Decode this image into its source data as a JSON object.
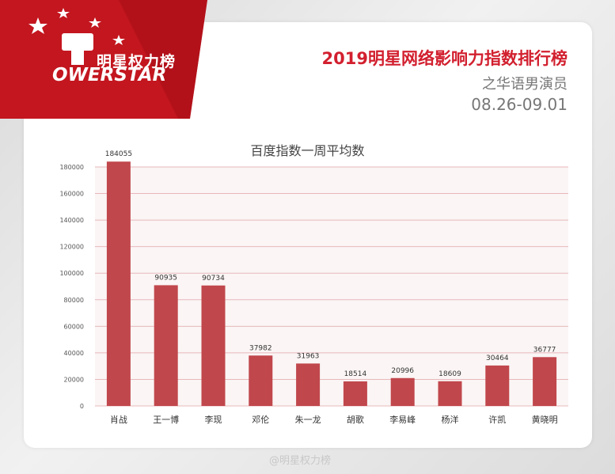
{
  "header": {
    "logo_text": "明星权力榜",
    "logo_word": "OWERSTAR",
    "title": "2019明星网络影响力指数排行榜",
    "subtitle": "之华语男演员",
    "date_range": "08.26-09.01"
  },
  "watermark": "@明星权力榜",
  "colors": {
    "bar": "#c0474c",
    "brand_red": "#d2202f",
    "grid": "#e8b8bb",
    "plot_bg": "#fbf5f5"
  },
  "chart_data": {
    "type": "bar",
    "title": "百度指数一周平均数",
    "categories": [
      "肖战",
      "王一博",
      "李现",
      "邓伦",
      "朱一龙",
      "胡歌",
      "李易峰",
      "杨洋",
      "许凯",
      "黄晓明"
    ],
    "values": [
      184055,
      90935,
      90734,
      37982,
      31963,
      18514,
      20996,
      18609,
      30464,
      36777
    ],
    "data_labels": [
      "184055",
      "90935",
      "90734",
      "37982",
      "31963",
      "18514",
      "20996",
      "18609",
      "30464",
      "36777"
    ],
    "ylim": [
      0,
      180000
    ],
    "yticks": [
      0,
      20000,
      40000,
      60000,
      80000,
      100000,
      120000,
      140000,
      160000,
      180000
    ],
    "grid": true,
    "xlabel": "",
    "ylabel": ""
  }
}
